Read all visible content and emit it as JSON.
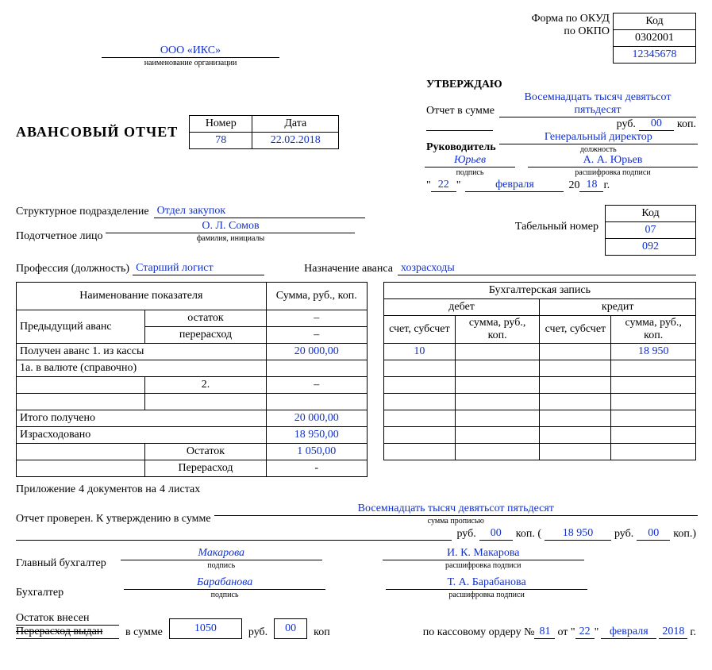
{
  "header": {
    "code_label": "Код",
    "okud_label": "Форма по ОКУД",
    "okud": "0302001",
    "okpo_label": "по ОКПО",
    "okpo": "12345678",
    "org": "ООО «ИКС»",
    "org_caption": "наименование организации"
  },
  "approve": {
    "title": "УТВЕРЖДАЮ",
    "sum_label": "Отчет в сумме",
    "sum_words": "Восемнадцать тысяч девятьсот пятьдесят",
    "rub_lbl": "руб.",
    "rub_kop": "00",
    "kop_lbl": "коп.",
    "leader_label": "Руководитель",
    "leader_pos": "Генеральный директор",
    "pos_caption": "должность",
    "sign_name": "Юрьев",
    "sign_caption": "подпись",
    "decoded": "А. А. Юрьев",
    "decoded_caption": "расшифровка подписи",
    "day": "22",
    "month": "февраля",
    "year_prefix": "20",
    "year": "18",
    "year_suffix": "г."
  },
  "main": {
    "title": "АВАНСОВЫЙ ОТЧЕТ",
    "num_lbl": "Номер",
    "num": "78",
    "date_lbl": "Дата",
    "date": "22.02.2018"
  },
  "info": {
    "dept_lbl": "Структурное подразделение",
    "dept": "Отдел закупок",
    "person_lbl": "Подотчетное лицо",
    "person": "О. Л. Сомов",
    "person_cap": "фамилия, инициалы",
    "code_lbl": "Код",
    "code": "07",
    "tab_lbl": "Табельный номер",
    "tab": "092",
    "prof_lbl": "Профессия (должность)",
    "prof": "Старший логист",
    "purpose_lbl": "Назначение аванса",
    "purpose": "хозрасходы"
  },
  "left_table": {
    "h1": "Наименование показателя",
    "h2": "Сумма, руб., коп.",
    "rows": [
      [
        "Предыдущий аванс",
        "остаток",
        "–"
      ],
      [
        "",
        "перерасход",
        "–"
      ],
      [
        "Получен аванс 1. из кассы",
        "",
        "20 000,00"
      ],
      [
        "1а. в валюте (справочно)",
        "",
        ""
      ],
      [
        "",
        "2.",
        "–"
      ],
      [
        "",
        "",
        ""
      ],
      [
        "Итого получено",
        "",
        "20 000,00"
      ],
      [
        "Израсходовано",
        "",
        "18 950,00"
      ],
      [
        "",
        "Остаток",
        "1 050,00"
      ],
      [
        "",
        "Перерасход",
        "-"
      ]
    ]
  },
  "right_table": {
    "h": "Бухгалтерская запись",
    "debit": "дебет",
    "credit": "кредит",
    "acc": "счет, субсчет",
    "sum": "сумма, руб., коп.",
    "rows": [
      [
        "10",
        "",
        "",
        "18 950"
      ],
      [
        "",
        "",
        "",
        ""
      ],
      [
        "",
        "",
        "",
        ""
      ],
      [
        "",
        "",
        "",
        ""
      ],
      [
        "",
        "",
        "",
        ""
      ],
      [
        "",
        "",
        "",
        ""
      ],
      [
        "",
        "",
        "",
        ""
      ]
    ]
  },
  "attach": {
    "lbl_a": "Приложение",
    "docs": "4",
    "lbl_b": "документов на",
    "sheets": "4",
    "lbl_c": "листах"
  },
  "verify": {
    "lbl": "Отчет проверен. К утверждению в сумме",
    "words": "Восемнадцать тысяч девятьсот пятьдесят",
    "words_cap": "сумма прописью",
    "rub_lbl": "руб.",
    "rub": "00",
    "kop_lbl": "коп. (",
    "amount": "18 950",
    "rub2": "руб.",
    "kop2": "00",
    "close": "коп.)"
  },
  "sign1": {
    "lbl": "Главный бухгалтер",
    "sig": "Макарова",
    "sig_cap": "подпись",
    "dec": "И. К. Макарова",
    "dec_cap": "расшифровка подписи"
  },
  "sign2": {
    "lbl": "Бухгалтер",
    "sig": "Барабанова",
    "sig_cap": "подпись",
    "dec": "Т. А. Барабанова",
    "dec_cap": "расшифровка подписи"
  },
  "foot": {
    "a": "Остаток внесен",
    "b": "Перерасход выдан",
    "sum_lbl": "в сумме",
    "sum": "1050",
    "rub_l": "руб.",
    "kop": "00",
    "kop_l": "коп",
    "order_lbl": "по кассовому ордеру №",
    "order_no": "81",
    "from": "от \"",
    "day": "22",
    "q": "\"",
    "month": "февраля",
    "year": "2018",
    "g": "г."
  }
}
